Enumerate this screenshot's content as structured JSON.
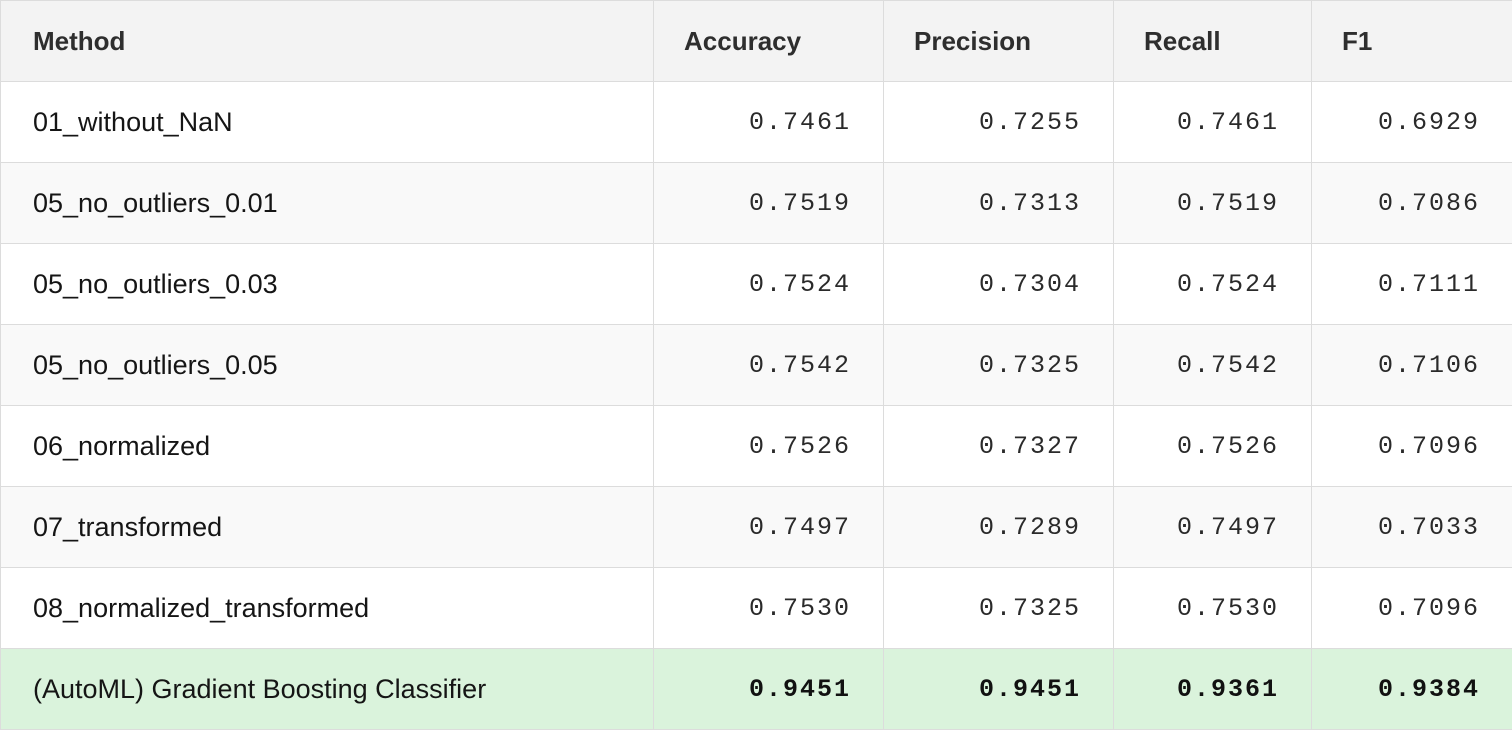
{
  "table": {
    "headers": {
      "method": "Method",
      "accuracy": "Accuracy",
      "precision": "Precision",
      "recall": "Recall",
      "f1": "F1"
    },
    "rows": [
      {
        "method": "01_without_NaN",
        "accuracy": "0.7461",
        "precision": "0.7255",
        "recall": "0.7461",
        "f1": "0.6929"
      },
      {
        "method": "05_no_outliers_0.01",
        "accuracy": "0.7519",
        "precision": "0.7313",
        "recall": "0.7519",
        "f1": "0.7086"
      },
      {
        "method": "05_no_outliers_0.03",
        "accuracy": "0.7524",
        "precision": "0.7304",
        "recall": "0.7524",
        "f1": "0.7111"
      },
      {
        "method": "05_no_outliers_0.05",
        "accuracy": "0.7542",
        "precision": "0.7325",
        "recall": "0.7542",
        "f1": "0.7106"
      },
      {
        "method": "06_normalized",
        "accuracy": "0.7526",
        "precision": "0.7327",
        "recall": "0.7526",
        "f1": "0.7096"
      },
      {
        "method": "07_transformed",
        "accuracy": "0.7497",
        "precision": "0.7289",
        "recall": "0.7497",
        "f1": "0.7033"
      },
      {
        "method": "08_normalized_transformed",
        "accuracy": "0.7530",
        "precision": "0.7325",
        "recall": "0.7530",
        "f1": "0.7096"
      },
      {
        "method": "(AutoML) Gradient Boosting Classifier",
        "accuracy": "0.9451",
        "precision": "0.9451",
        "recall": "0.9361",
        "f1": "0.9384"
      }
    ]
  },
  "colors": {
    "header_bg": "#f3f3f3",
    "highlight_bg": "#daf3dc",
    "border": "#dcdcdc"
  }
}
